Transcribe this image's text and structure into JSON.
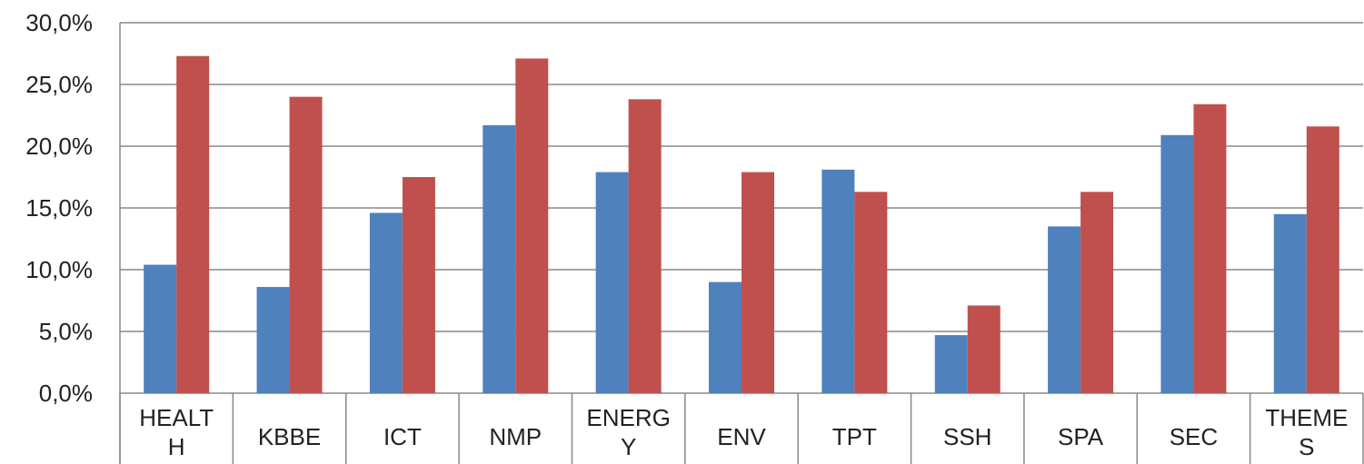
{
  "chart_data": {
    "type": "bar",
    "categories": [
      [
        "HEALT",
        "H"
      ],
      [
        "KBBE"
      ],
      [
        "ICT"
      ],
      [
        "NMP"
      ],
      [
        "ENERG",
        "Y"
      ],
      [
        "ENV"
      ],
      [
        "TPT"
      ],
      [
        "SSH"
      ],
      [
        "SPA"
      ],
      [
        "SEC"
      ],
      [
        "THEME",
        "S"
      ]
    ],
    "series": [
      {
        "color": "#4f81bd",
        "values": [
          10.4,
          8.6,
          14.6,
          21.7,
          17.9,
          9.0,
          18.1,
          4.7,
          13.5,
          20.9,
          14.5
        ]
      },
      {
        "color": "#c0504d",
        "values": [
          27.3,
          24.0,
          17.5,
          27.1,
          23.8,
          17.9,
          16.3,
          7.1,
          16.3,
          23.4,
          21.6
        ]
      }
    ],
    "ylim": [
      0,
      30
    ],
    "yticks": [
      "0,0%",
      "5,0%",
      "10,0%",
      "15,0%",
      "20,0%",
      "25,0%",
      "30,0%"
    ],
    "grid": true,
    "legend": "none"
  }
}
